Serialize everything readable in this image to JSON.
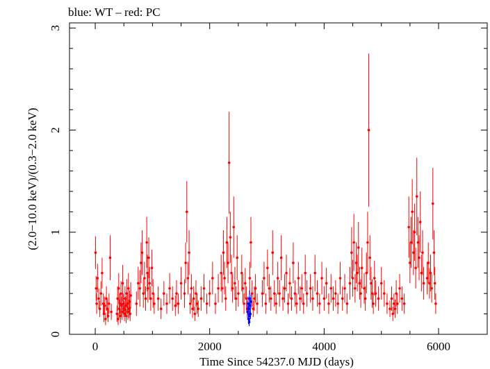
{
  "chart_data": {
    "type": "scatter",
    "title": "blue: WT – red: PC",
    "xlabel": "Time Since 54237.0 MJD (days)",
    "ylabel": "(2.0−10.0 keV)/(0.3−2.0 keV)",
    "xlim": [
      -450,
      6850
    ],
    "ylim": [
      0,
      3.05
    ],
    "x_ticks": [
      0,
      2000,
      4000,
      6000
    ],
    "x_tick_labels": [
      "0",
      "2000",
      "4000",
      "6000"
    ],
    "y_ticks": [
      0,
      1,
      2,
      3
    ],
    "y_tick_labels": [
      "0",
      "1",
      "2",
      "3"
    ],
    "grid": false,
    "legend": "none",
    "colors": {
      "PC": "#ff0000",
      "WT": "#0000ff"
    },
    "series": [
      {
        "name": "PC",
        "points": [
          [
            5,
            0.8,
            0.16
          ],
          [
            15,
            0.45,
            0.12
          ],
          [
            25,
            0.3,
            0.1
          ],
          [
            40,
            0.55,
            0.14
          ],
          [
            60,
            0.35,
            0.1
          ],
          [
            80,
            0.25,
            0.08
          ],
          [
            100,
            0.4,
            0.12
          ],
          [
            120,
            0.6,
            0.15
          ],
          [
            140,
            0.3,
            0.1
          ],
          [
            150,
            0.2,
            0.08
          ],
          [
            165,
            0.28,
            0.09
          ],
          [
            180,
            0.15,
            0.06
          ],
          [
            195,
            0.35,
            0.12
          ],
          [
            210,
            0.25,
            0.09
          ],
          [
            225,
            0.18,
            0.06
          ],
          [
            240,
            0.3,
            0.1
          ],
          [
            260,
            0.75,
            0.22
          ],
          [
            280,
            0.22,
            0.08
          ],
          [
            380,
            0.2,
            0.08
          ],
          [
            390,
            0.35,
            0.12
          ],
          [
            400,
            0.15,
            0.06
          ],
          [
            410,
            0.45,
            0.15
          ],
          [
            420,
            0.25,
            0.09
          ],
          [
            430,
            0.3,
            0.1
          ],
          [
            440,
            0.18,
            0.07
          ],
          [
            450,
            0.4,
            0.12
          ],
          [
            460,
            0.28,
            0.09
          ],
          [
            470,
            0.22,
            0.08
          ],
          [
            480,
            0.5,
            0.18
          ],
          [
            490,
            0.3,
            0.1
          ],
          [
            500,
            0.25,
            0.08
          ],
          [
            510,
            0.2,
            0.07
          ],
          [
            520,
            0.35,
            0.12
          ],
          [
            530,
            0.28,
            0.09
          ],
          [
            540,
            0.18,
            0.07
          ],
          [
            550,
            0.4,
            0.14
          ],
          [
            560,
            0.3,
            0.1
          ],
          [
            570,
            0.22,
            0.08
          ],
          [
            580,
            0.45,
            0.15
          ],
          [
            590,
            0.25,
            0.09
          ],
          [
            600,
            0.32,
            0.11
          ],
          [
            610,
            0.2,
            0.07
          ],
          [
            620,
            0.38,
            0.13
          ],
          [
            720,
            0.3,
            0.12
          ],
          [
            750,
            0.5,
            0.16
          ],
          [
            780,
            0.45,
            0.18
          ],
          [
            800,
            0.7,
            0.2
          ],
          [
            820,
            0.8,
            0.22
          ],
          [
            840,
            0.4,
            0.14
          ],
          [
            860,
            0.55,
            0.16
          ],
          [
            880,
            0.35,
            0.12
          ],
          [
            900,
            0.9,
            0.25
          ],
          [
            910,
            0.6,
            0.18
          ],
          [
            920,
            0.45,
            0.14
          ],
          [
            935,
            0.75,
            0.2
          ],
          [
            950,
            0.5,
            0.16
          ],
          [
            970,
            0.35,
            0.12
          ],
          [
            990,
            0.65,
            0.18
          ],
          [
            1010,
            0.4,
            0.14
          ],
          [
            1030,
            0.3,
            0.1
          ],
          [
            1100,
            0.35,
            0.12
          ],
          [
            1150,
            0.25,
            0.1
          ],
          [
            1200,
            0.4,
            0.12
          ],
          [
            1250,
            0.3,
            0.1
          ],
          [
            1300,
            0.45,
            0.15
          ],
          [
            1350,
            0.35,
            0.12
          ],
          [
            1400,
            0.28,
            0.1
          ],
          [
            1420,
            0.4,
            0.13
          ],
          [
            1450,
            0.3,
            0.1
          ],
          [
            1500,
            0.5,
            0.16
          ],
          [
            1560,
            0.4,
            0.14
          ],
          [
            1580,
            0.7,
            0.2
          ],
          [
            1600,
            1.2,
            0.3
          ],
          [
            1620,
            0.55,
            0.16
          ],
          [
            1640,
            0.8,
            0.22
          ],
          [
            1660,
            0.3,
            0.1
          ],
          [
            1680,
            0.45,
            0.14
          ],
          [
            1700,
            0.25,
            0.09
          ],
          [
            1720,
            0.35,
            0.12
          ],
          [
            1740,
            0.2,
            0.07
          ],
          [
            1760,
            0.4,
            0.13
          ],
          [
            1780,
            0.3,
            0.1
          ],
          [
            1800,
            0.25,
            0.08
          ],
          [
            1850,
            0.35,
            0.12
          ],
          [
            1900,
            0.45,
            0.14
          ],
          [
            1950,
            0.3,
            0.1
          ],
          [
            2000,
            0.4,
            0.13
          ],
          [
            2050,
            0.55,
            0.16
          ],
          [
            2100,
            0.3,
            0.1
          ],
          [
            2150,
            0.45,
            0.14
          ],
          [
            2200,
            0.6,
            0.18
          ],
          [
            2220,
            0.45,
            0.14
          ],
          [
            2240,
            0.8,
            0.22
          ],
          [
            2260,
            0.55,
            0.16
          ],
          [
            2280,
            0.35,
            0.12
          ],
          [
            2300,
            0.9,
            0.25
          ],
          [
            2320,
            0.7,
            0.2
          ],
          [
            2340,
            1.68,
            0.5
          ],
          [
            2360,
            0.95,
            0.25
          ],
          [
            2380,
            0.6,
            0.18
          ],
          [
            2400,
            0.45,
            0.14
          ],
          [
            2420,
            1.05,
            0.3
          ],
          [
            2440,
            0.5,
            0.16
          ],
          [
            2460,
            0.35,
            0.12
          ],
          [
            2480,
            0.75,
            0.22
          ],
          [
            2500,
            0.4,
            0.13
          ],
          [
            2560,
            0.6,
            0.18
          ],
          [
            2580,
            0.45,
            0.14
          ],
          [
            2600,
            0.3,
            0.1
          ],
          [
            2620,
            0.5,
            0.15
          ],
          [
            2640,
            0.35,
            0.12
          ],
          [
            2660,
            0.25,
            0.08
          ],
          [
            2680,
            0.2,
            0.07
          ],
          [
            2700,
            0.55,
            0.16
          ],
          [
            2720,
            0.9,
            0.25
          ],
          [
            2740,
            0.4,
            0.13
          ],
          [
            2760,
            0.25,
            0.08
          ],
          [
            2780,
            0.35,
            0.12
          ],
          [
            2800,
            0.45,
            0.14
          ],
          [
            2830,
            0.3,
            0.1
          ],
          [
            2920,
            0.4,
            0.13
          ],
          [
            2950,
            0.55,
            0.16
          ],
          [
            2980,
            0.3,
            0.1
          ],
          [
            3010,
            0.65,
            0.18
          ],
          [
            3040,
            0.45,
            0.14
          ],
          [
            3070,
            0.35,
            0.12
          ],
          [
            3100,
            0.8,
            0.22
          ],
          [
            3130,
            0.4,
            0.13
          ],
          [
            3160,
            0.3,
            0.1
          ],
          [
            3190,
            0.55,
            0.16
          ],
          [
            3220,
            0.4,
            0.13
          ],
          [
            3250,
            0.75,
            0.22
          ],
          [
            3280,
            0.35,
            0.12
          ],
          [
            3310,
            0.45,
            0.14
          ],
          [
            3340,
            0.6,
            0.18
          ],
          [
            3370,
            0.3,
            0.1
          ],
          [
            3400,
            0.5,
            0.15
          ],
          [
            3430,
            0.35,
            0.12
          ],
          [
            3460,
            0.7,
            0.2
          ],
          [
            3490,
            0.4,
            0.13
          ],
          [
            3520,
            0.3,
            0.1
          ],
          [
            3550,
            0.55,
            0.16
          ],
          [
            3580,
            0.35,
            0.12
          ],
          [
            3610,
            0.45,
            0.14
          ],
          [
            3640,
            0.3,
            0.1
          ],
          [
            3670,
            0.6,
            0.18
          ],
          [
            3700,
            0.4,
            0.13
          ],
          [
            3760,
            0.45,
            0.14
          ],
          [
            3800,
            0.35,
            0.12
          ],
          [
            3840,
            0.6,
            0.18
          ],
          [
            3880,
            0.4,
            0.13
          ],
          [
            3920,
            0.3,
            0.1
          ],
          [
            3960,
            0.55,
            0.16
          ],
          [
            4000,
            0.35,
            0.12
          ],
          [
            4040,
            0.5,
            0.15
          ],
          [
            4080,
            0.3,
            0.1
          ],
          [
            4120,
            0.45,
            0.14
          ],
          [
            4160,
            0.35,
            0.12
          ],
          [
            4200,
            0.4,
            0.13
          ],
          [
            4240,
            0.3,
            0.1
          ],
          [
            4280,
            0.55,
            0.16
          ],
          [
            4320,
            0.35,
            0.12
          ],
          [
            4360,
            0.45,
            0.14
          ],
          [
            4400,
            0.3,
            0.1
          ],
          [
            4450,
            0.5,
            0.16
          ],
          [
            4480,
            0.8,
            0.25
          ],
          [
            4500,
            0.55,
            0.18
          ],
          [
            4520,
            0.9,
            0.28
          ],
          [
            4540,
            0.45,
            0.14
          ],
          [
            4560,
            0.7,
            0.2
          ],
          [
            4580,
            0.6,
            0.18
          ],
          [
            4600,
            0.85,
            0.25
          ],
          [
            4620,
            0.5,
            0.16
          ],
          [
            4640,
            0.4,
            0.14
          ],
          [
            4660,
            0.65,
            0.2
          ],
          [
            4700,
            0.45,
            0.15
          ],
          [
            4720,
            0.35,
            0.12
          ],
          [
            4740,
            0.6,
            0.2
          ],
          [
            4760,
            0.9,
            0.3
          ],
          [
            4780,
            2.0,
            0.75
          ],
          [
            4800,
            0.75,
            0.22
          ],
          [
            4820,
            0.5,
            0.16
          ],
          [
            4840,
            0.4,
            0.14
          ],
          [
            4860,
            0.3,
            0.1
          ],
          [
            4880,
            0.55,
            0.17
          ],
          [
            4900,
            0.4,
            0.13
          ],
          [
            4950,
            0.35,
            0.12
          ],
          [
            5000,
            0.5,
            0.16
          ],
          [
            5050,
            0.4,
            0.13
          ],
          [
            5100,
            0.3,
            0.1
          ],
          [
            5150,
            0.25,
            0.08
          ],
          [
            5180,
            0.35,
            0.12
          ],
          [
            5200,
            0.2,
            0.07
          ],
          [
            5220,
            0.3,
            0.1
          ],
          [
            5240,
            0.25,
            0.09
          ],
          [
            5260,
            0.4,
            0.13
          ],
          [
            5280,
            0.3,
            0.1
          ],
          [
            5320,
            0.45,
            0.14
          ],
          [
            5360,
            0.35,
            0.12
          ],
          [
            5400,
            0.3,
            0.1
          ],
          [
            5480,
            1.05,
            0.3
          ],
          [
            5500,
            0.7,
            0.2
          ],
          [
            5520,
            0.9,
            0.25
          ],
          [
            5540,
            1.2,
            0.32
          ],
          [
            5560,
            0.8,
            0.22
          ],
          [
            5580,
            1.0,
            0.28
          ],
          [
            5600,
            0.65,
            0.2
          ],
          [
            5620,
            1.35,
            0.38
          ],
          [
            5640,
            0.9,
            0.25
          ],
          [
            5660,
            0.75,
            0.22
          ],
          [
            5680,
            1.1,
            0.3
          ],
          [
            5700,
            0.6,
            0.18
          ],
          [
            5720,
            0.8,
            0.22
          ],
          [
            5740,
            0.5,
            0.16
          ],
          [
            5800,
            0.55,
            0.16
          ],
          [
            5820,
            0.7,
            0.2
          ],
          [
            5840,
            0.5,
            0.15
          ],
          [
            5860,
            0.6,
            0.18
          ],
          [
            5880,
            0.45,
            0.14
          ],
          [
            5900,
            1.28,
            0.35
          ],
          [
            5920,
            0.8,
            0.22
          ],
          [
            5935,
            0.5,
            0.16
          ],
          [
            5950,
            0.3,
            0.1
          ]
        ]
      },
      {
        "name": "WT",
        "points": [
          [
            2660,
            0.22,
            0.06
          ],
          [
            2670,
            0.3,
            0.07
          ],
          [
            2678,
            0.15,
            0.05
          ],
          [
            2685,
            0.25,
            0.06
          ],
          [
            2690,
            0.12,
            0.04
          ],
          [
            2695,
            0.35,
            0.08
          ],
          [
            2700,
            0.18,
            0.05
          ],
          [
            2705,
            0.28,
            0.06
          ],
          [
            2712,
            0.2,
            0.05
          ],
          [
            2720,
            0.32,
            0.07
          ]
        ]
      }
    ]
  }
}
